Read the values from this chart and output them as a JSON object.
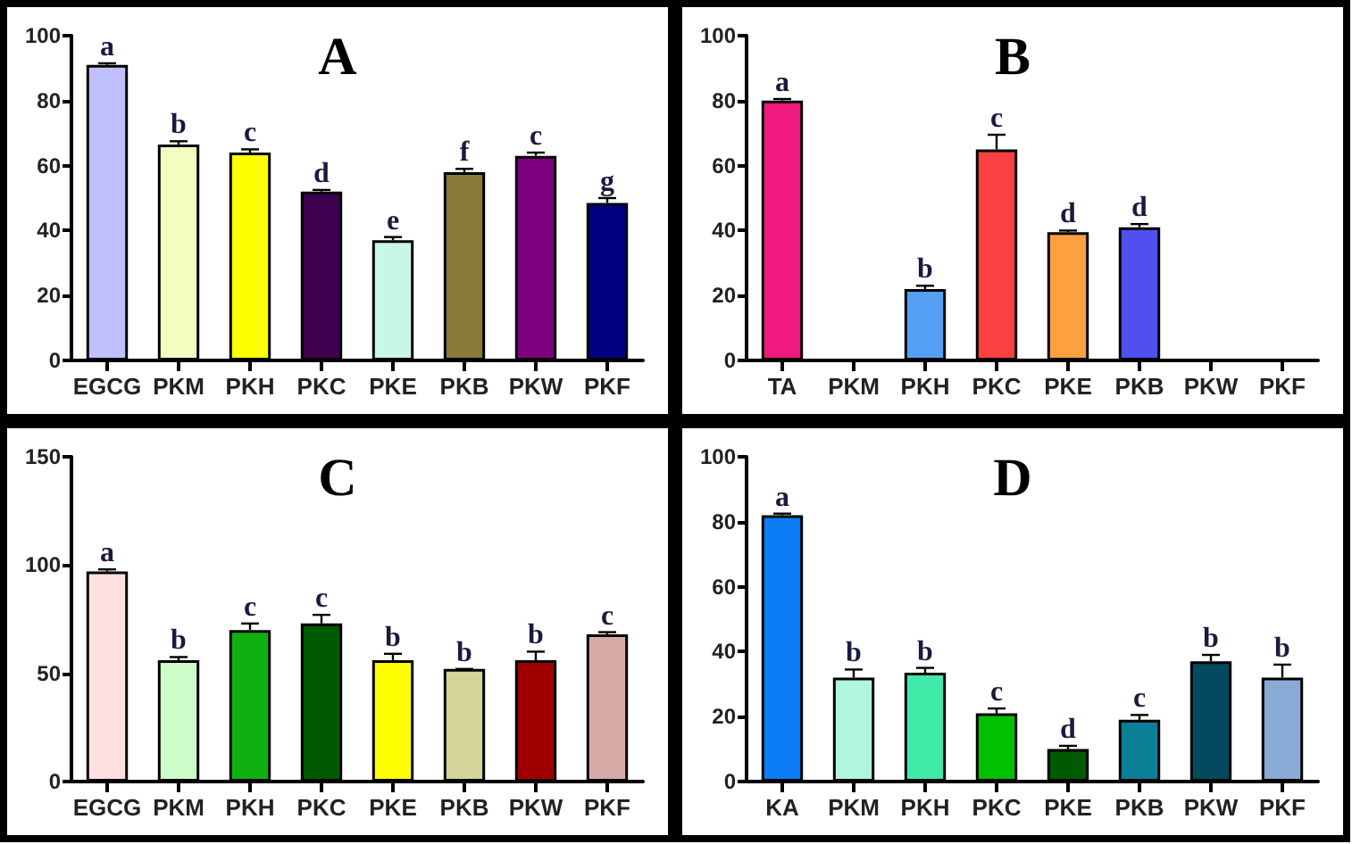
{
  "chart_data": [
    {
      "type": "bar",
      "title": "A",
      "categories": [
        "EGCG",
        "PKM",
        "PKH",
        "PKC",
        "PKE",
        "PKB",
        "PKW",
        "PKF"
      ],
      "values": [
        91,
        66.5,
        64,
        52,
        37,
        58,
        63,
        48.5
      ],
      "colors": [
        "#c0c0ff",
        "#f5fcc0",
        "#ffff00",
        "#3f0050",
        "#c8f7e6",
        "#887a3a",
        "#7f007f",
        "#000080"
      ],
      "errors": [
        0.5,
        1,
        1,
        0.5,
        1,
        1,
        1,
        1.5
      ],
      "value_labels": [
        "a",
        "b",
        "c",
        "d",
        "e",
        "f",
        "c",
        "g"
      ],
      "ylim": [
        0,
        100
      ],
      "yticks": [
        0,
        20,
        40,
        60,
        80,
        100
      ]
    },
    {
      "type": "bar",
      "title": "B",
      "categories": [
        "TA",
        "PKM",
        "PKH",
        "PKC",
        "PKE",
        "PKB",
        "PKW",
        "PKF"
      ],
      "values": [
        80,
        null,
        22,
        65,
        39.5,
        41,
        null,
        null
      ],
      "colors": [
        "#f01a7e",
        "#cccccc",
        "#55a0f5",
        "#fa4040",
        "#ffa040",
        "#5050f0",
        "#cccccc",
        "#cccccc"
      ],
      "errors": [
        0.5,
        null,
        1,
        4.5,
        0.5,
        1,
        null,
        null
      ],
      "value_labels": [
        "a",
        null,
        "b",
        "c",
        "d",
        "d",
        null,
        null
      ],
      "ylim": [
        0,
        100
      ],
      "yticks": [
        0,
        20,
        40,
        60,
        80,
        100
      ]
    },
    {
      "type": "bar",
      "title": "C",
      "categories": [
        "EGCG",
        "PKM",
        "PKH",
        "PKC",
        "PKE",
        "PKB",
        "PKW",
        "PKF"
      ],
      "values": [
        97,
        56,
        70,
        73,
        56,
        52,
        56,
        68
      ],
      "colors": [
        "#ffdfe0",
        "#ccfcc8",
        "#10b010",
        "#005a00",
        "#ffff00",
        "#d5d49a",
        "#a00000",
        "#d7aaa8"
      ],
      "errors": [
        1,
        1.5,
        3,
        4,
        3,
        0,
        4,
        1
      ],
      "value_labels": [
        "a",
        "b",
        "c",
        "c",
        "b",
        "b",
        "b",
        "c"
      ],
      "ylim": [
        0,
        150
      ],
      "yticks": [
        0,
        50,
        100,
        150
      ]
    },
    {
      "type": "bar",
      "title": "D",
      "categories": [
        "KA",
        "PKM",
        "PKH",
        "PKC",
        "PKE",
        "PKB",
        "PKW",
        "PKF"
      ],
      "values": [
        82,
        32,
        33.5,
        21,
        10,
        19,
        37,
        32
      ],
      "colors": [
        "#0a7cf5",
        "#b0f5df",
        "#40eaa8",
        "#00c000",
        "#005a00",
        "#0a7f96",
        "#034a5e",
        "#8aabd6"
      ],
      "errors": [
        0.5,
        2.5,
        1.5,
        1.5,
        1,
        1.5,
        2,
        4
      ],
      "value_labels": [
        "a",
        "b",
        "b",
        "c",
        "d",
        "c",
        "b",
        "b"
      ],
      "ylim": [
        0,
        100
      ],
      "yticks": [
        0,
        20,
        40,
        60,
        80,
        100
      ]
    }
  ]
}
